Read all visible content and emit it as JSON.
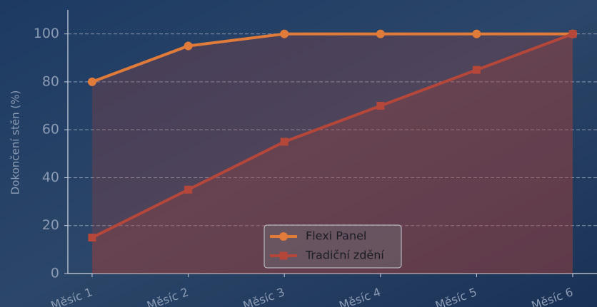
{
  "chart_data": {
    "type": "line",
    "y_label": "Dokončení stěn (%)",
    "categories": [
      "Měsíc 1",
      "Měsíc 2",
      "Měsíc 3",
      "Měsíc 4",
      "Měsíc 5",
      "Měsíc 6"
    ],
    "series": [
      {
        "name": "Flexi Panel",
        "color": "#e07b39",
        "marker": "circle",
        "values": [
          80,
          95,
          100,
          100,
          100,
          100
        ]
      },
      {
        "name": "Tradiční zdění",
        "color": "#b5473a",
        "marker": "square",
        "values": [
          15,
          35,
          55,
          70,
          85,
          100
        ]
      }
    ],
    "ylim": [
      0,
      110
    ],
    "yticks": [
      0,
      20,
      40,
      60,
      80,
      100
    ],
    "grid": true,
    "legend": "lower center"
  }
}
